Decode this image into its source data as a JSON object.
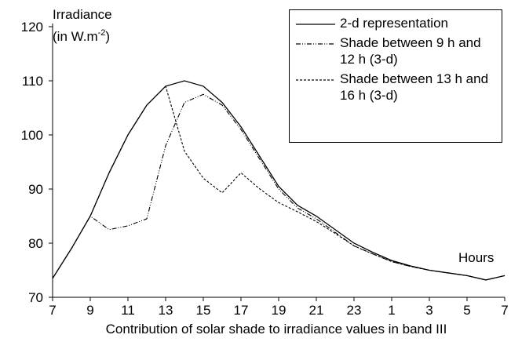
{
  "chart_data": {
    "type": "line",
    "ylabel": "Irradiance",
    "ylabel_unit": {
      "text": "(in W.m",
      "superscript": "-2",
      "close": ")"
    },
    "xlabel": "Hours",
    "caption": "Contribution of solar shade to irradiance values in band III",
    "x": [
      7,
      8,
      9,
      10,
      11,
      12,
      13,
      14,
      15,
      16,
      17,
      18,
      19,
      20,
      21,
      22,
      23,
      24,
      25,
      26,
      27,
      28,
      29,
      30,
      31
    ],
    "series": [
      {
        "name": "2-d representation",
        "color": "#000000",
        "dash": "none",
        "values": [
          73.5,
          79,
          85,
          93,
          100,
          105.5,
          109,
          110,
          109,
          106,
          101.5,
          96,
          90.5,
          87,
          85,
          82.5,
          80,
          78.3,
          76.8,
          75.8,
          75,
          74.5,
          74,
          73.2,
          74
        ]
      },
      {
        "name": "Shade between 9 h and 12 h (3-d)",
        "color": "#000000",
        "dash": "6 2 1 2 1 2",
        "values": [
          73.5,
          79,
          85,
          82.5,
          83.2,
          84.5,
          98,
          106,
          107.5,
          105.5,
          101,
          95.5,
          90,
          86.5,
          84.5,
          82,
          79.5,
          78,
          76.6,
          75.7,
          75,
          74.5,
          74,
          73.2,
          74
        ]
      },
      {
        "name": "Shade between 13 h and 16 h (3-d)",
        "color": "#000000",
        "dash": "3 2",
        "values": [
          73.5,
          79,
          85,
          93,
          100,
          105.5,
          109,
          97,
          92,
          89.3,
          93,
          90,
          87.5,
          85.8,
          84,
          81.8,
          79.5,
          78,
          76.6,
          75.7,
          75,
          74.5,
          74,
          73.2,
          74
        ]
      }
    ],
    "xlim": [
      7,
      31
    ],
    "xticks": [
      7,
      9,
      11,
      13,
      15,
      17,
      19,
      21,
      23,
      {
        "value": 25,
        "label": "1"
      },
      {
        "value": 27,
        "label": "3"
      },
      {
        "value": 29,
        "label": "5"
      },
      {
        "value": 31,
        "label": "7"
      }
    ],
    "ylim": [
      70,
      120
    ],
    "yticks": [
      70,
      80,
      90,
      100,
      110,
      120
    ],
    "grid": false
  }
}
